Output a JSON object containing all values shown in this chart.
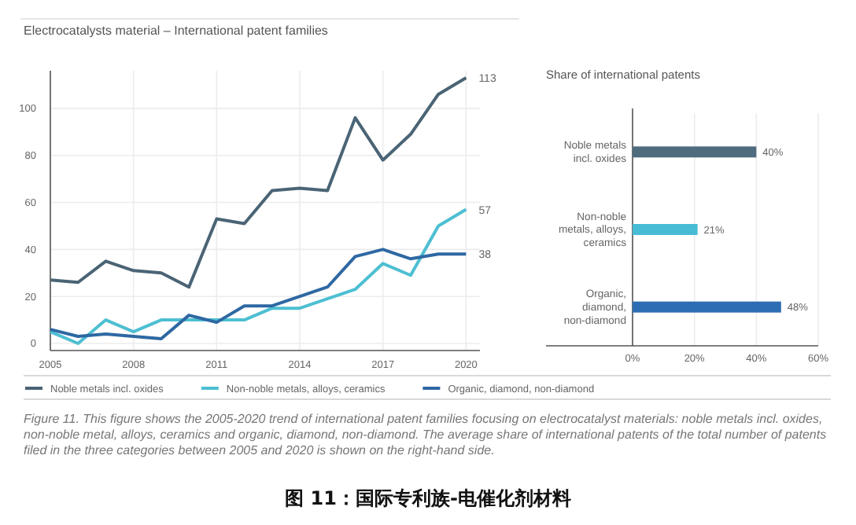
{
  "chart_data": [
    {
      "type": "line",
      "title": "Electrocatalysts material – International patent families",
      "x": [
        2005,
        2006,
        2007,
        2008,
        2009,
        2010,
        2011,
        2012,
        2013,
        2014,
        2015,
        2016,
        2017,
        2018,
        2019,
        2020
      ],
      "series": [
        {
          "name": "Noble metals incl. oxides",
          "color": "#4a6475",
          "values": [
            27,
            26,
            35,
            31,
            30,
            24,
            53,
            51,
            65,
            66,
            65,
            96,
            78,
            89,
            106,
            113
          ],
          "value_labels": [
            null,
            null,
            null,
            null,
            null,
            null,
            null,
            null,
            null,
            null,
            null,
            null,
            null,
            null,
            null,
            "113"
          ]
        },
        {
          "name": "Non-noble metals, alloys, ceramics",
          "color": "#4dbfd2",
          "values": [
            5,
            0,
            10,
            5,
            10,
            10,
            10,
            10,
            15,
            15,
            19,
            23,
            34,
            29,
            50,
            57
          ],
          "value_labels": [
            null,
            null,
            null,
            null,
            null,
            null,
            null,
            null,
            null,
            null,
            null,
            null,
            null,
            null,
            null,
            "57"
          ]
        },
        {
          "name": "Organic, diamond, non-diamond",
          "color": "#2e68a3",
          "values": [
            6,
            3,
            4,
            3,
            2,
            12,
            9,
            16,
            16,
            20,
            24,
            37,
            40,
            36,
            38,
            38
          ],
          "value_labels": [
            null,
            null,
            null,
            null,
            null,
            null,
            null,
            null,
            null,
            null,
            null,
            null,
            null,
            null,
            null,
            "38"
          ]
        }
      ],
      "xlim": [
        2005,
        2020.5
      ],
      "ylim": [
        -3,
        116
      ],
      "xticks": [
        2005,
        2008,
        2011,
        2014,
        2017,
        2020
      ],
      "yticks": [
        0,
        20,
        40,
        60,
        80,
        100
      ],
      "grid": true,
      "legend": "bottom",
      "annotations": [
        "Figure 11. This figure shows the 2005-2020 trend of international patent families focusing on electrocatalyst materials: noble metals incl. oxides, non-noble metal, alloys, ceramics and organic, diamond, non-diamond. The average share of international patents of the total number of patents filed in the three categories between 2005 and 2020 is shown on the right-hand side.",
        "图 11：国际专利族-电催化剂材料"
      ]
    },
    {
      "type": "bar",
      "orientation": "horizontal",
      "title": "Share of international patents",
      "categories": [
        "Noble metals incl. oxides",
        "Non-noble metals, alloys, ceramics",
        "Organic, diamond, non-diamond"
      ],
      "values": [
        40,
        21,
        48
      ],
      "colors": [
        "#4f6b7e",
        "#47bcd4",
        "#2d6db3"
      ],
      "value_labels": [
        "40%",
        "21%",
        "48%"
      ],
      "xlim": [
        0,
        60
      ],
      "xticks": [
        {
          "value": 0,
          "label": "0%"
        },
        {
          "value": 20,
          "label": "20%"
        },
        {
          "value": 40,
          "label": "40%"
        },
        {
          "value": 60,
          "label": "60%"
        }
      ],
      "grid": "x"
    }
  ]
}
